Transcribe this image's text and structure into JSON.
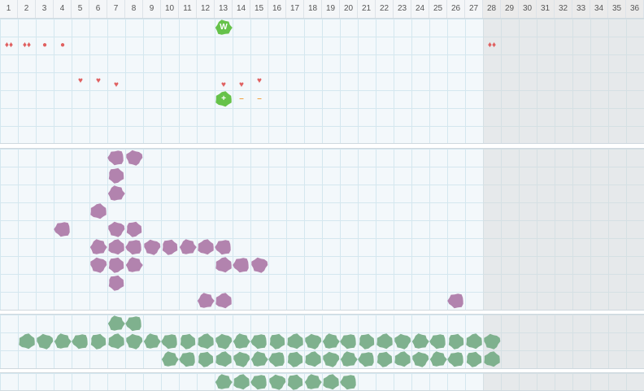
{
  "columns": [
    "1",
    "2",
    "3",
    "4",
    "5",
    "6",
    "7",
    "8",
    "9",
    "10",
    "11",
    "12",
    "13",
    "14",
    "15",
    "16",
    "17",
    "18",
    "19",
    "20",
    "21",
    "22",
    "23",
    "24",
    "25",
    "26",
    "27",
    "28",
    "29",
    "30",
    "31",
    "32",
    "33",
    "34",
    "35",
    "36"
  ],
  "colors": {
    "purple": "#b283ae",
    "green": "#7fb18e",
    "bright_green": "#66c24a",
    "red": "#e06060",
    "orange": "#f0a040"
  },
  "top_markers": [
    {
      "col": 1,
      "row": 2,
      "icon": "double-drop-icon",
      "glyph": "♦♦"
    },
    {
      "col": 2,
      "row": 2,
      "icon": "triple-drop-icon",
      "glyph": "♦♦"
    },
    {
      "col": 3,
      "row": 2,
      "icon": "dot-icon",
      "glyph": "●"
    },
    {
      "col": 4,
      "row": 2,
      "icon": "dot-icon",
      "glyph": "●"
    },
    {
      "col": 28,
      "row": 2,
      "icon": "double-drop-icon",
      "glyph": "♦♦"
    },
    {
      "col": 5,
      "row": 4,
      "icon": "heart-icon",
      "glyph": "♥"
    },
    {
      "col": 6,
      "row": 4,
      "icon": "heart-icon",
      "glyph": "♥"
    },
    {
      "col": 7,
      "row": 4,
      "icon": "heart-icon",
      "glyph": "♥",
      "offset": 5
    },
    {
      "col": 13,
      "row": 4,
      "icon": "heart-icon",
      "glyph": "♥",
      "offset": 5
    },
    {
      "col": 14,
      "row": 4,
      "icon": "heart-icon",
      "glyph": "♥",
      "offset": 5
    },
    {
      "col": 15,
      "row": 4,
      "icon": "double-heart-icon",
      "glyph": "♥"
    },
    {
      "col": 14,
      "row": 5,
      "icon": "minus-icon",
      "glyph": "–"
    },
    {
      "col": 15,
      "row": 5,
      "icon": "minus-icon",
      "glyph": "–"
    }
  ],
  "badges": [
    {
      "col": 13,
      "row": 1,
      "label": "W",
      "icon": "w-badge-icon"
    },
    {
      "col": 13,
      "row": 5,
      "label": "+",
      "icon": "plus-badge-icon"
    }
  ],
  "purple_cells": [
    [
      7,
      1
    ],
    [
      8,
      1
    ],
    [
      7,
      2
    ],
    [
      7,
      3
    ],
    [
      6,
      4
    ],
    [
      4,
      5
    ],
    [
      7,
      5
    ],
    [
      8,
      5
    ],
    [
      6,
      6
    ],
    [
      7,
      6
    ],
    [
      8,
      6
    ],
    [
      9,
      6
    ],
    [
      10,
      6
    ],
    [
      11,
      6
    ],
    [
      12,
      6
    ],
    [
      13,
      6
    ],
    [
      6,
      7
    ],
    [
      7,
      7
    ],
    [
      8,
      7
    ],
    [
      13,
      7
    ],
    [
      14,
      7
    ],
    [
      15,
      7
    ],
    [
      7,
      8
    ],
    [
      12,
      9
    ],
    [
      13,
      9
    ],
    [
      26,
      9
    ]
  ],
  "green_cells_rows": [
    {
      "row": 1,
      "cols": [
        7,
        8
      ]
    },
    {
      "row": 2,
      "from": 2,
      "to": 28
    },
    {
      "row": 3,
      "from": 10,
      "to": 28
    }
  ],
  "bottom_green": {
    "from": 13,
    "to": 20
  }
}
